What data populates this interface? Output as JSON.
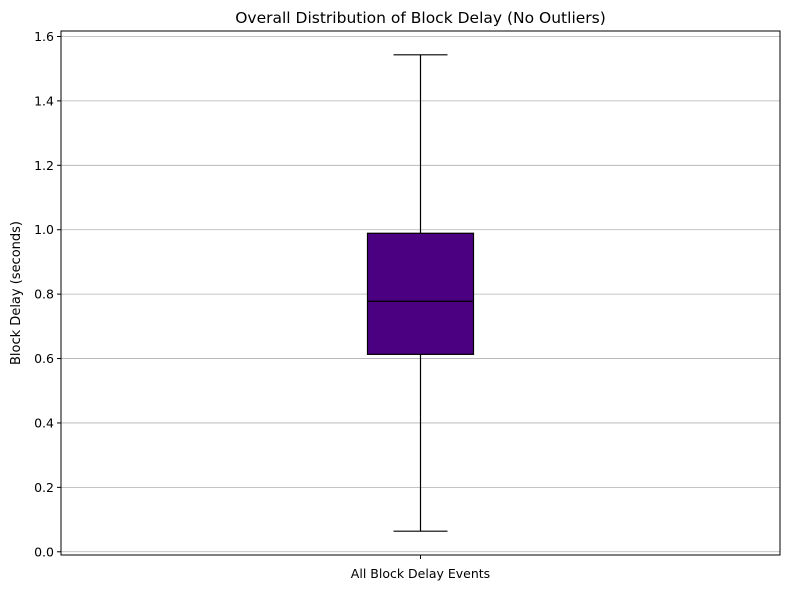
{
  "chart_data": {
    "type": "boxplot",
    "title": "Overall Distribution of Block Delay (No Outliers)",
    "xlabel": "",
    "ylabel": "Block Delay (seconds)",
    "categories": [
      "All Block Delay Events"
    ],
    "boxes": [
      {
        "category": "All Block Delay Events",
        "whisker_low": 0.064,
        "q1": 0.613,
        "median": 0.778,
        "q3": 0.989,
        "whisker_high": 1.543
      }
    ],
    "ylim": [
      -0.01,
      1.617
    ],
    "yticks": [
      0.0,
      0.2,
      0.4,
      0.6,
      0.8,
      1.0,
      1.2,
      1.4,
      1.6
    ],
    "ytick_labels": [
      "0.0",
      "0.2",
      "0.4",
      "0.6",
      "0.8",
      "1.0",
      "1.2",
      "1.4",
      "1.6"
    ],
    "grid": "y-axis major",
    "outliers_shown": false,
    "colors": {
      "box_fill": "#4b0082",
      "box_edge": "#000000",
      "median": "#000000",
      "whisker": "#000000",
      "grid": "#b0b0b0"
    }
  }
}
